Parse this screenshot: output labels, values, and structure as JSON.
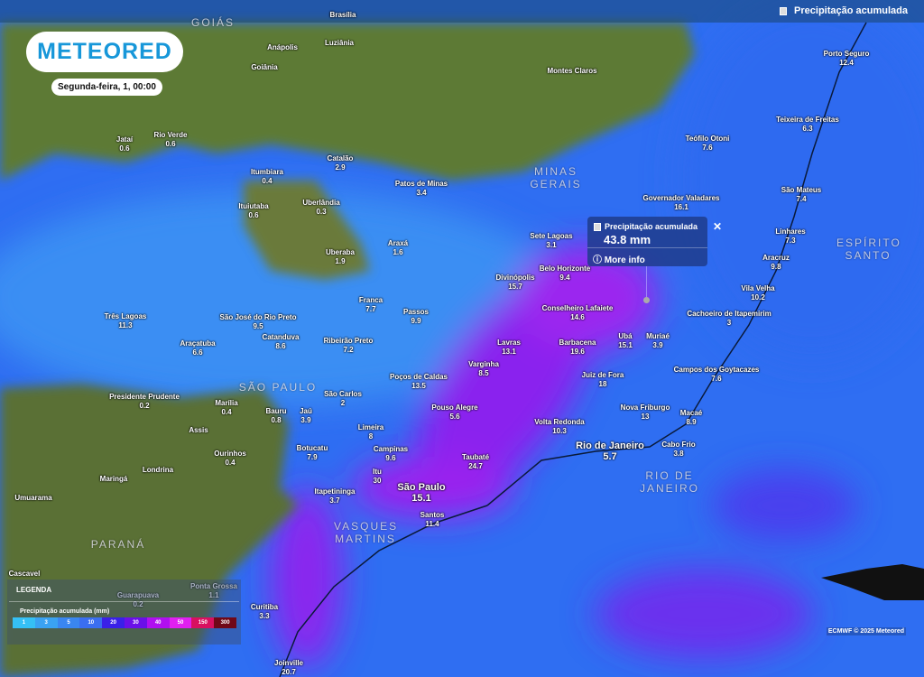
{
  "layer": {
    "label": "Precipitação acumulada"
  },
  "logo": "METEORED",
  "date": "Segunda-feira, 1, 00:00",
  "popup": {
    "title": "Precipitação acumulada",
    "value": "43.8 mm",
    "more": "More info"
  },
  "legend": {
    "title": "LEGENDA",
    "subtitle": "Precipitação acumulada (mm)",
    "steps": [
      {
        "label": "1",
        "color": "#35c0f5"
      },
      {
        "label": "3",
        "color": "#3aa2f2"
      },
      {
        "label": "5",
        "color": "#3a86f0"
      },
      {
        "label": "10",
        "color": "#3a6ef0"
      },
      {
        "label": "20",
        "color": "#3a20e8"
      },
      {
        "label": "30",
        "color": "#6a10e8"
      },
      {
        "label": "40",
        "color": "#b010f0"
      },
      {
        "label": "50",
        "color": "#e020f0"
      },
      {
        "label": "150",
        "color": "#d81060"
      },
      {
        "label": "300",
        "color": "#700818"
      }
    ]
  },
  "credit": "ECMWF © 2025 Meteored",
  "states": [
    "GOIÁS",
    "MINAS GERAIS",
    "ESPÍRITO SANTO",
    "SÃO PAULO",
    "RIO DE JANEIRO",
    "PARANÁ",
    "VASQUES MARTINS"
  ],
  "cities": [
    {
      "name": "Jataí",
      "value": "0.6"
    },
    {
      "name": "Rio Verde",
      "value": "0.6"
    },
    {
      "name": "Itumbiara",
      "value": "0.4"
    },
    {
      "name": "Catalão",
      "value": "2.9"
    },
    {
      "name": "Patos de Minas",
      "value": "3.4"
    },
    {
      "name": "Ituiutaba",
      "value": "0.6"
    },
    {
      "name": "Uberlândia",
      "value": "0.3"
    },
    {
      "name": "Uberaba",
      "value": "1.9"
    },
    {
      "name": "Araxá",
      "value": "1.6"
    },
    {
      "name": "Anápolis",
      "value": ""
    },
    {
      "name": "Goiânia",
      "value": ""
    },
    {
      "name": "Luziânia",
      "value": ""
    },
    {
      "name": "Brasília",
      "value": ""
    },
    {
      "name": "Montes Claros",
      "value": ""
    },
    {
      "name": "Porto Seguro",
      "value": "12.4"
    },
    {
      "name": "Teixeira de Freitas",
      "value": "6.3"
    },
    {
      "name": "Teófilo Otoni",
      "value": "7.6"
    },
    {
      "name": "Governador Valadares",
      "value": "16.1"
    },
    {
      "name": "São Mateus",
      "value": "7.4"
    },
    {
      "name": "Linhares",
      "value": "7.3"
    },
    {
      "name": "Aracruz",
      "value": "9.8"
    },
    {
      "name": "Vila Velha",
      "value": "10.2"
    },
    {
      "name": "Sete Lagoas",
      "value": "3.1"
    },
    {
      "name": "Belo Horizonte",
      "value": "9.4"
    },
    {
      "name": "Divinópolis",
      "value": "15.7"
    },
    {
      "name": "Conselheiro Lafaiete",
      "value": "14.6"
    },
    {
      "name": "Cachoeiro de Itapemirim",
      "value": "3"
    },
    {
      "name": "Ubá",
      "value": "15.1"
    },
    {
      "name": "Muriaé",
      "value": "3.9"
    },
    {
      "name": "Barbacena",
      "value": "19.6"
    },
    {
      "name": "Lavras",
      "value": "13.1"
    },
    {
      "name": "Juiz de Fora",
      "value": "18"
    },
    {
      "name": "Campos dos Goytacazes",
      "value": "7.6"
    },
    {
      "name": "Nova Friburgo",
      "value": "13"
    },
    {
      "name": "Macaé",
      "value": "8.9"
    },
    {
      "name": "Volta Redonda",
      "value": "10.3"
    },
    {
      "name": "Rio de Janeiro",
      "value": "5.7"
    },
    {
      "name": "Cabo Frio",
      "value": "3.8"
    },
    {
      "name": "Três Lagoas",
      "value": "11.3"
    },
    {
      "name": "São José do Rio Preto",
      "value": "9.5"
    },
    {
      "name": "Catanduva",
      "value": "8.6"
    },
    {
      "name": "Ribeirão Preto",
      "value": "7.2"
    },
    {
      "name": "Franca",
      "value": "7.7"
    },
    {
      "name": "Passos",
      "value": "9.9"
    },
    {
      "name": "Araçatuba",
      "value": "6.6"
    },
    {
      "name": "Varginha",
      "value": "8.5"
    },
    {
      "name": "Poços de Caldas",
      "value": "13.5"
    },
    {
      "name": "Presidente Prudente",
      "value": "0.2"
    },
    {
      "name": "Marília",
      "value": "0.4"
    },
    {
      "name": "Bauru",
      "value": "0.8"
    },
    {
      "name": "Jaú",
      "value": "3.9"
    },
    {
      "name": "São Carlos",
      "value": "2"
    },
    {
      "name": "Pouso Alegre",
      "value": "5.6"
    },
    {
      "name": "Limeira",
      "value": "8"
    },
    {
      "name": "Assis",
      "value": ""
    },
    {
      "name": "Ourinhos",
      "value": "0.4"
    },
    {
      "name": "Botucatu",
      "value": "7.9"
    },
    {
      "name": "Campinas",
      "value": "9.6"
    },
    {
      "name": "Taubaté",
      "value": "24.7"
    },
    {
      "name": "Itu",
      "value": "30"
    },
    {
      "name": "São Paulo",
      "value": "15.1"
    },
    {
      "name": "Itapetininga",
      "value": "3.7"
    },
    {
      "name": "Santos",
      "value": "11.4"
    },
    {
      "name": "Maringá",
      "value": ""
    },
    {
      "name": "Londrina",
      "value": ""
    },
    {
      "name": "Umuarama",
      "value": ""
    },
    {
      "name": "Cascavel",
      "value": ""
    },
    {
      "name": "Ponta Grossa",
      "value": "1.1"
    },
    {
      "name": "Guarapuava",
      "value": "0.2"
    },
    {
      "name": "Curitiba",
      "value": "3.3"
    },
    {
      "name": "Joinville",
      "value": "20.7"
    }
  ]
}
